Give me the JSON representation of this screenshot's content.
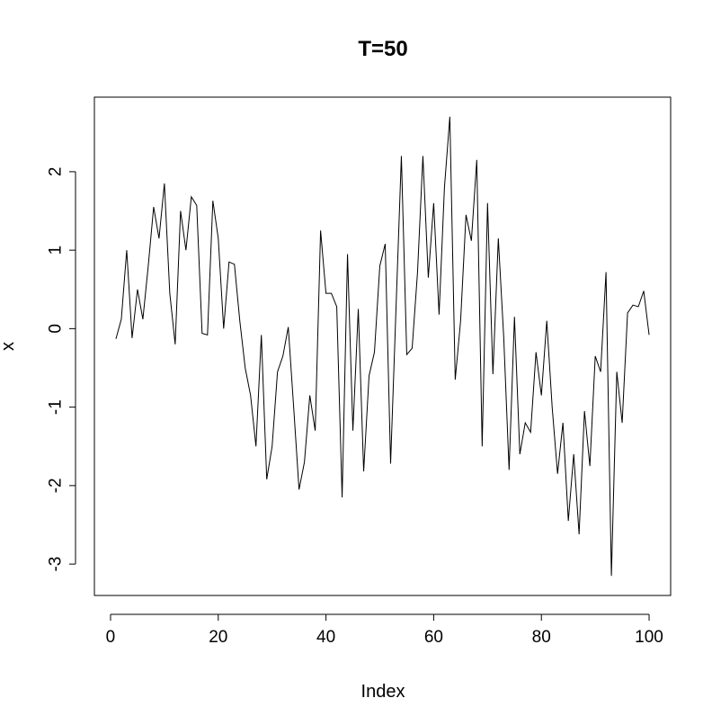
{
  "chart_data": {
    "type": "line",
    "title": "T=50",
    "xlabel": "Index",
    "ylabel": "x",
    "xlim": [
      -3.0,
      104.0
    ],
    "ylim": [
      -3.4,
      2.95
    ],
    "xticks": [
      0,
      20,
      40,
      60,
      80,
      100
    ],
    "yticks": [
      -3,
      -2,
      -1,
      0,
      1,
      2
    ],
    "xtick_labels": [
      "0",
      "20",
      "40",
      "60",
      "80",
      "100"
    ],
    "ytick_labels": [
      "-3",
      "-2",
      "-1",
      "0",
      "1",
      "2"
    ],
    "grid": false,
    "legend": null,
    "series": [
      {
        "name": "x",
        "color": "#000000",
        "x": [
          1,
          2,
          3,
          4,
          5,
          6,
          7,
          8,
          9,
          10,
          11,
          12,
          13,
          14,
          15,
          16,
          17,
          18,
          19,
          20,
          21,
          22,
          23,
          24,
          25,
          26,
          27,
          28,
          29,
          30,
          31,
          32,
          33,
          34,
          35,
          36,
          37,
          38,
          39,
          40,
          41,
          42,
          43,
          44,
          45,
          46,
          47,
          48,
          49,
          50,
          51,
          52,
          53,
          54,
          55,
          56,
          57,
          58,
          59,
          60,
          61,
          62,
          63,
          64,
          65,
          66,
          67,
          68,
          69,
          70,
          71,
          72,
          73,
          74,
          75,
          76,
          77,
          78,
          79,
          80,
          81,
          82,
          83,
          84,
          85,
          86,
          87,
          88,
          89,
          90,
          91,
          92,
          93,
          94,
          95,
          96,
          97,
          98,
          99,
          100
        ],
        "values": [
          -0.13,
          0.12,
          1.0,
          -0.12,
          0.5,
          0.12,
          0.8,
          1.55,
          1.15,
          1.85,
          0.45,
          -0.2,
          1.5,
          1.0,
          1.68,
          1.57,
          -0.06,
          -0.08,
          1.63,
          1.15,
          0.0,
          0.85,
          0.82,
          0.1,
          -0.5,
          -0.85,
          -1.5,
          -0.08,
          -1.92,
          -1.5,
          -0.55,
          -0.35,
          0.02,
          -1.0,
          -2.05,
          -1.7,
          -0.85,
          -1.3,
          1.25,
          0.45,
          0.45,
          0.28,
          -2.15,
          0.95,
          -1.3,
          0.25,
          -1.82,
          -0.6,
          -0.3,
          0.8,
          1.08,
          -1.72,
          0.25,
          2.2,
          -0.33,
          -0.25,
          0.72,
          2.2,
          0.65,
          1.6,
          0.18,
          1.8,
          2.7,
          -0.65,
          0.1,
          1.45,
          1.12,
          2.15,
          -1.5,
          1.6,
          -0.58,
          1.15,
          -0.1,
          -1.8,
          0.15,
          -1.6,
          -1.2,
          -1.32,
          -0.3,
          -0.85,
          0.1,
          -1.0,
          -1.85,
          -1.2,
          -2.45,
          -1.6,
          -2.62,
          -1.05,
          -1.75,
          -0.35,
          -0.55,
          0.72,
          -3.15,
          -0.55,
          -1.2,
          0.2,
          0.3,
          0.28,
          0.48,
          -0.08
        ]
      }
    ]
  }
}
